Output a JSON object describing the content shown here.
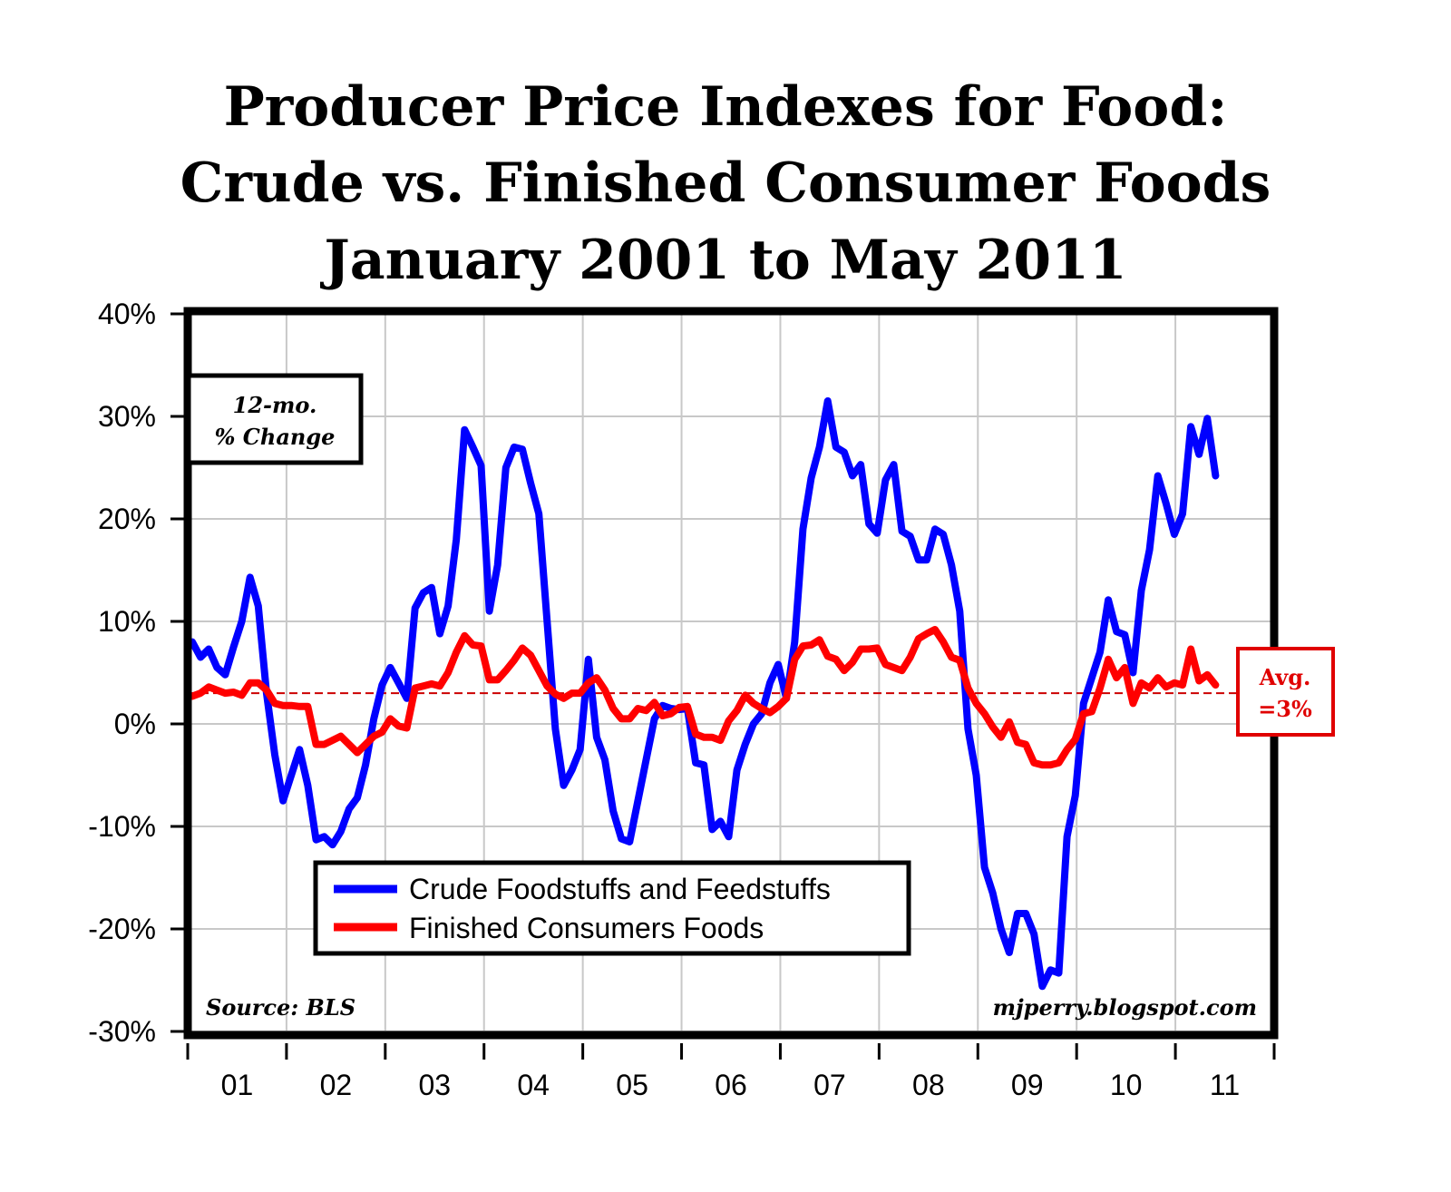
{
  "chart_data": {
    "type": "line",
    "title": [
      "Producer Price Indexes for Food:",
      "Crude vs. Finished Consumer Foods",
      "January 2001 to May 2011"
    ],
    "xlabel": "",
    "ylabel": "",
    "annotation_box": [
      "12-mo.",
      "% Change"
    ],
    "source": "Source: BLS",
    "watermark": "mjperry.blogspot.com",
    "x_start": "2001-01",
    "x_end": "2011-05",
    "x_frequency": "monthly",
    "x_tick_labels": [
      "01",
      "02",
      "03",
      "04",
      "05",
      "06",
      "07",
      "08",
      "09",
      "10",
      "11"
    ],
    "ylim": [
      -30,
      40
    ],
    "y_ticks": [
      40,
      30,
      20,
      10,
      0,
      -10,
      -20,
      -30
    ],
    "y_tick_labels": [
      "40%",
      "30%",
      "20%",
      "10%",
      "0%",
      "-10%",
      "-20%",
      "-30%"
    ],
    "grid": true,
    "legend_placement": "bottom-center",
    "reference_line": {
      "value": 3,
      "label": [
        "Avg.",
        "=3%"
      ],
      "color": "#cc0000",
      "style": "dashed"
    },
    "series": [
      {
        "name": "Crude Foodstuffs and Feedstuffs",
        "color": "#0000ff",
        "values": [
          8,
          6.5,
          7.3,
          5.5,
          4.8,
          7.5,
          10,
          14.3,
          11.5,
          3,
          -3,
          -7.5,
          -5,
          -2.5,
          -6,
          -11.3,
          -11,
          -11.8,
          -10.5,
          -8.3,
          -7.2,
          -4,
          0.5,
          3.8,
          5.5,
          4,
          2.5,
          11.3,
          12.8,
          13.3,
          8.8,
          11.5,
          18,
          28.7,
          27,
          25.2,
          11,
          15.5,
          25,
          27,
          26.8,
          23.5,
          20.5,
          10,
          -0.5,
          -6,
          -4.5,
          -2.5,
          6.3,
          -1.3,
          -3.5,
          -8.5,
          -11.2,
          -11.5,
          -7.5,
          -3.5,
          0.5,
          1.8,
          1.5,
          1.4,
          1.5,
          -3.8,
          -4,
          -10.3,
          -9.5,
          -11,
          -4.5,
          -2,
          0,
          1,
          4,
          5.8,
          2.5,
          8,
          19,
          24,
          27,
          31.5,
          27,
          26.5,
          24.2,
          25.3,
          19.5,
          18.6,
          23.8,
          25.3,
          18.8,
          18.3,
          16,
          16,
          19,
          18.5,
          15.5,
          11,
          -0.5,
          -5,
          -14,
          -16.5,
          -20,
          -22.3,
          -18.5,
          -18.5,
          -20.5,
          -25.6,
          -24,
          -24.3,
          -11,
          -7,
          2,
          4.5,
          7,
          12.1,
          9,
          8.7,
          5,
          13,
          17,
          24.2,
          21.5,
          18.5,
          20.5,
          29,
          26.3,
          29.8,
          24.2
        ]
      },
      {
        "name": "Finished Consumers Foods",
        "color": "#ff0000",
        "values": [
          2.7,
          3,
          3.6,
          3.3,
          3,
          3.1,
          2.8,
          4,
          4,
          3.3,
          2,
          1.8,
          1.8,
          1.7,
          1.7,
          -2,
          -2,
          -1.6,
          -1.2,
          -2,
          -2.8,
          -2,
          -1.2,
          -0.8,
          0.5,
          -0.2,
          -0.4,
          3.5,
          3.7,
          3.9,
          3.7,
          5,
          7,
          8.6,
          7.7,
          7.6,
          4.3,
          4.3,
          5.2,
          6.2,
          7.4,
          6.7,
          5.2,
          3.7,
          2.9,
          2.5,
          3,
          3,
          4,
          4.5,
          3.3,
          1.5,
          0.5,
          0.5,
          1.5,
          1.3,
          2.1,
          0.8,
          1,
          1.6,
          1.7,
          -1,
          -1.3,
          -1.3,
          -1.6,
          0.3,
          1.3,
          2.8,
          2,
          1.5,
          1.1,
          1.7,
          2.5,
          6.3,
          7.6,
          7.7,
          8.2,
          6.6,
          6.3,
          5.2,
          6,
          7.3,
          7.3,
          7.4,
          5.8,
          5.5,
          5.2,
          6.5,
          8.3,
          8.8,
          9.2,
          8,
          6.5,
          6.2,
          3.5,
          2,
          1,
          -0.3,
          -1.3,
          0.2,
          -1.8,
          -2,
          -3.8,
          -4,
          -4,
          -3.8,
          -2.5,
          -1.5,
          1,
          1.2,
          3.5,
          6.3,
          4.5,
          5.5,
          2,
          4,
          3.5,
          4.5,
          3.6,
          4,
          3.8,
          7.3,
          4.2,
          4.8,
          3.8
        ]
      }
    ]
  }
}
